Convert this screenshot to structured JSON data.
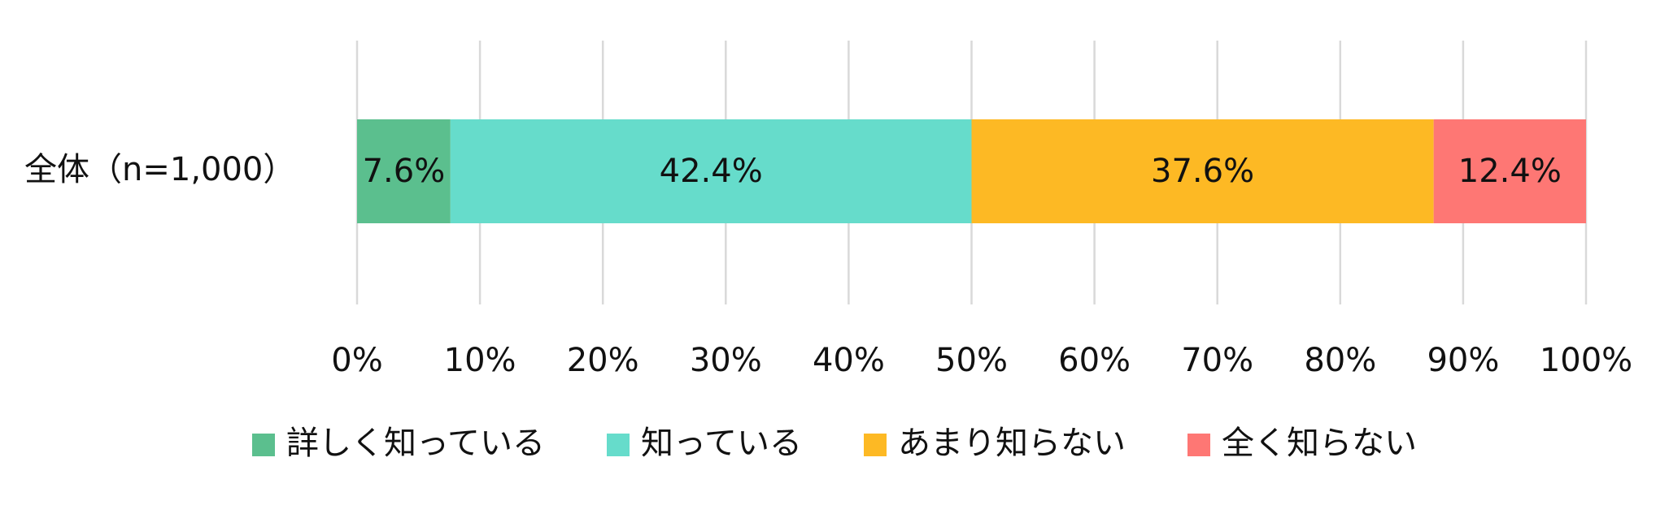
{
  "chart_data": {
    "type": "bar",
    "orientation": "horizontal",
    "stacked": true,
    "categories": [
      "全体（n=1,000）"
    ],
    "series": [
      {
        "name": "詳しく知っている",
        "color": "#5bbf8e",
        "values": [
          7.6
        ],
        "value_labels": [
          "7.6%"
        ]
      },
      {
        "name": "知っている",
        "color": "#66dccb",
        "values": [
          42.4
        ],
        "value_labels": [
          "42.4%"
        ]
      },
      {
        "name": "あまり知らない",
        "color": "#fdb924",
        "values": [
          37.6
        ],
        "value_labels": [
          "37.6%"
        ]
      },
      {
        "name": "全く知らない",
        "color": "#fe7774",
        "values": [
          12.4
        ],
        "value_labels": [
          "12.4%"
        ]
      }
    ],
    "xlim": [
      0,
      100
    ],
    "xticks": [
      {
        "value": 0,
        "label": "0%"
      },
      {
        "value": 10,
        "label": "10%"
      },
      {
        "value": 20,
        "label": "20%"
      },
      {
        "value": 30,
        "label": "30%"
      },
      {
        "value": 40,
        "label": "40%"
      },
      {
        "value": 50,
        "label": "50%"
      },
      {
        "value": 60,
        "label": "60%"
      },
      {
        "value": 70,
        "label": "70%"
      },
      {
        "value": 80,
        "label": "80%"
      },
      {
        "value": 90,
        "label": "90%"
      },
      {
        "value": 100,
        "label": "100%"
      }
    ],
    "grid": true,
    "legend": "bottom"
  }
}
